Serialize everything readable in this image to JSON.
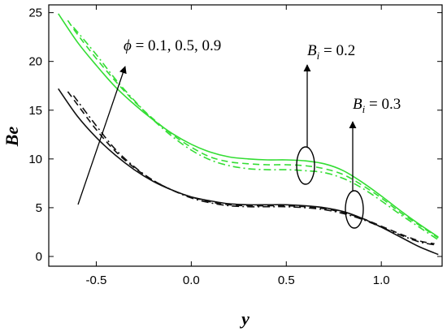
{
  "chart_data": {
    "type": "line",
    "title": "",
    "xlabel": "y",
    "ylabel": "Be",
    "xlim": [
      -0.75,
      1.32
    ],
    "ylim": [
      -1,
      25.8
    ],
    "xticks": [
      "-0.5",
      "0.0",
      "0.5",
      "1.0"
    ],
    "yticks": [
      "0",
      "5",
      "10",
      "15",
      "20",
      "25"
    ],
    "grid": false,
    "legend": "none",
    "colors": {
      "green": "#33dd33",
      "black": "#111111"
    },
    "series": [
      {
        "group": "Bi=0.2",
        "color": "green",
        "dash": "solid",
        "x": [
          -0.7,
          -0.6,
          -0.5,
          -0.4,
          -0.3,
          -0.2,
          -0.1,
          0.0,
          0.1,
          0.2,
          0.3,
          0.4,
          0.5,
          0.6,
          0.7,
          0.8,
          0.9,
          1.0,
          1.1,
          1.2,
          1.3
        ],
        "values": [
          24.9,
          22.0,
          19.6,
          17.4,
          15.6,
          14.0,
          12.6,
          11.5,
          10.7,
          10.2,
          10.0,
          9.9,
          9.9,
          9.8,
          9.5,
          8.8,
          7.6,
          6.2,
          4.7,
          3.3,
          2.0
        ]
      },
      {
        "group": "Bi=0.2",
        "color": "green",
        "dash": "dashed",
        "x": [
          -0.65,
          -0.6,
          -0.5,
          -0.4,
          -0.3,
          -0.2,
          -0.1,
          0.0,
          0.1,
          0.2,
          0.3,
          0.4,
          0.5,
          0.6,
          0.7,
          0.8,
          0.9,
          1.0,
          1.1,
          1.2,
          1.3
        ],
        "values": [
          24.2,
          22.8,
          20.3,
          18.0,
          15.9,
          14.1,
          12.5,
          11.2,
          10.2,
          9.7,
          9.5,
          9.4,
          9.4,
          9.3,
          9.0,
          8.4,
          7.3,
          6.0,
          4.5,
          3.2,
          1.9
        ]
      },
      {
        "group": "Bi=0.2",
        "color": "green",
        "dash": "dashdot",
        "x": [
          -0.62,
          -0.5,
          -0.4,
          -0.3,
          -0.2,
          -0.1,
          0.0,
          0.1,
          0.2,
          0.3,
          0.4,
          0.5,
          0.6,
          0.7,
          0.8,
          0.9,
          1.0,
          1.1,
          1.2,
          1.3
        ],
        "values": [
          23.5,
          20.7,
          18.2,
          16.0,
          14.0,
          12.3,
          10.9,
          9.9,
          9.3,
          9.0,
          8.9,
          8.9,
          8.8,
          8.6,
          8.0,
          7.0,
          5.7,
          4.3,
          3.0,
          1.7
        ]
      },
      {
        "group": "Bi=0.3",
        "color": "black",
        "dash": "solid",
        "x": [
          -0.7,
          -0.6,
          -0.5,
          -0.4,
          -0.3,
          -0.2,
          -0.1,
          0.0,
          0.1,
          0.2,
          0.3,
          0.4,
          0.5,
          0.6,
          0.7,
          0.8,
          0.9,
          1.0,
          1.1,
          1.2,
          1.3
        ],
        "values": [
          17.2,
          14.4,
          12.2,
          10.4,
          8.9,
          7.7,
          6.8,
          6.1,
          5.7,
          5.4,
          5.3,
          5.3,
          5.3,
          5.2,
          5.0,
          4.6,
          3.9,
          3.0,
          2.0,
          1.0,
          0.2
        ]
      },
      {
        "group": "Bi=0.3",
        "color": "black",
        "dash": "dashed",
        "x": [
          -0.65,
          -0.6,
          -0.5,
          -0.4,
          -0.3,
          -0.2,
          -0.1,
          0.0,
          0.1,
          0.2,
          0.3,
          0.4,
          0.5,
          0.6,
          0.7,
          0.8,
          0.9,
          1.0,
          1.1,
          1.2,
          1.28
        ],
        "values": [
          16.9,
          15.6,
          13.0,
          10.8,
          9.1,
          7.8,
          6.8,
          6.1,
          5.6,
          5.3,
          5.2,
          5.2,
          5.2,
          5.1,
          4.9,
          4.5,
          3.9,
          3.1,
          2.3,
          1.6,
          1.3
        ]
      },
      {
        "group": "Bi=0.3",
        "color": "black",
        "dash": "dashdot",
        "x": [
          -0.62,
          -0.5,
          -0.4,
          -0.3,
          -0.2,
          -0.1,
          0.0,
          0.1,
          0.2,
          0.3,
          0.4,
          0.5,
          0.6,
          0.7,
          0.8,
          0.9,
          1.0,
          1.1,
          1.2,
          1.28
        ],
        "values": [
          16.5,
          13.4,
          11.0,
          9.2,
          7.8,
          6.8,
          6.0,
          5.5,
          5.2,
          5.1,
          5.1,
          5.1,
          5.0,
          4.8,
          4.4,
          3.8,
          3.0,
          2.2,
          1.5,
          1.2
        ]
      }
    ],
    "annotations": {
      "phi": {
        "symbol": "ϕ",
        "text": " = 0.1, 0.5, 0.9"
      },
      "bi_green": {
        "symbol": "B",
        "sub": "i",
        "text": " = 0.2"
      },
      "bi_black": {
        "symbol": "B",
        "sub": "i",
        "text": " = 0.3"
      }
    }
  }
}
